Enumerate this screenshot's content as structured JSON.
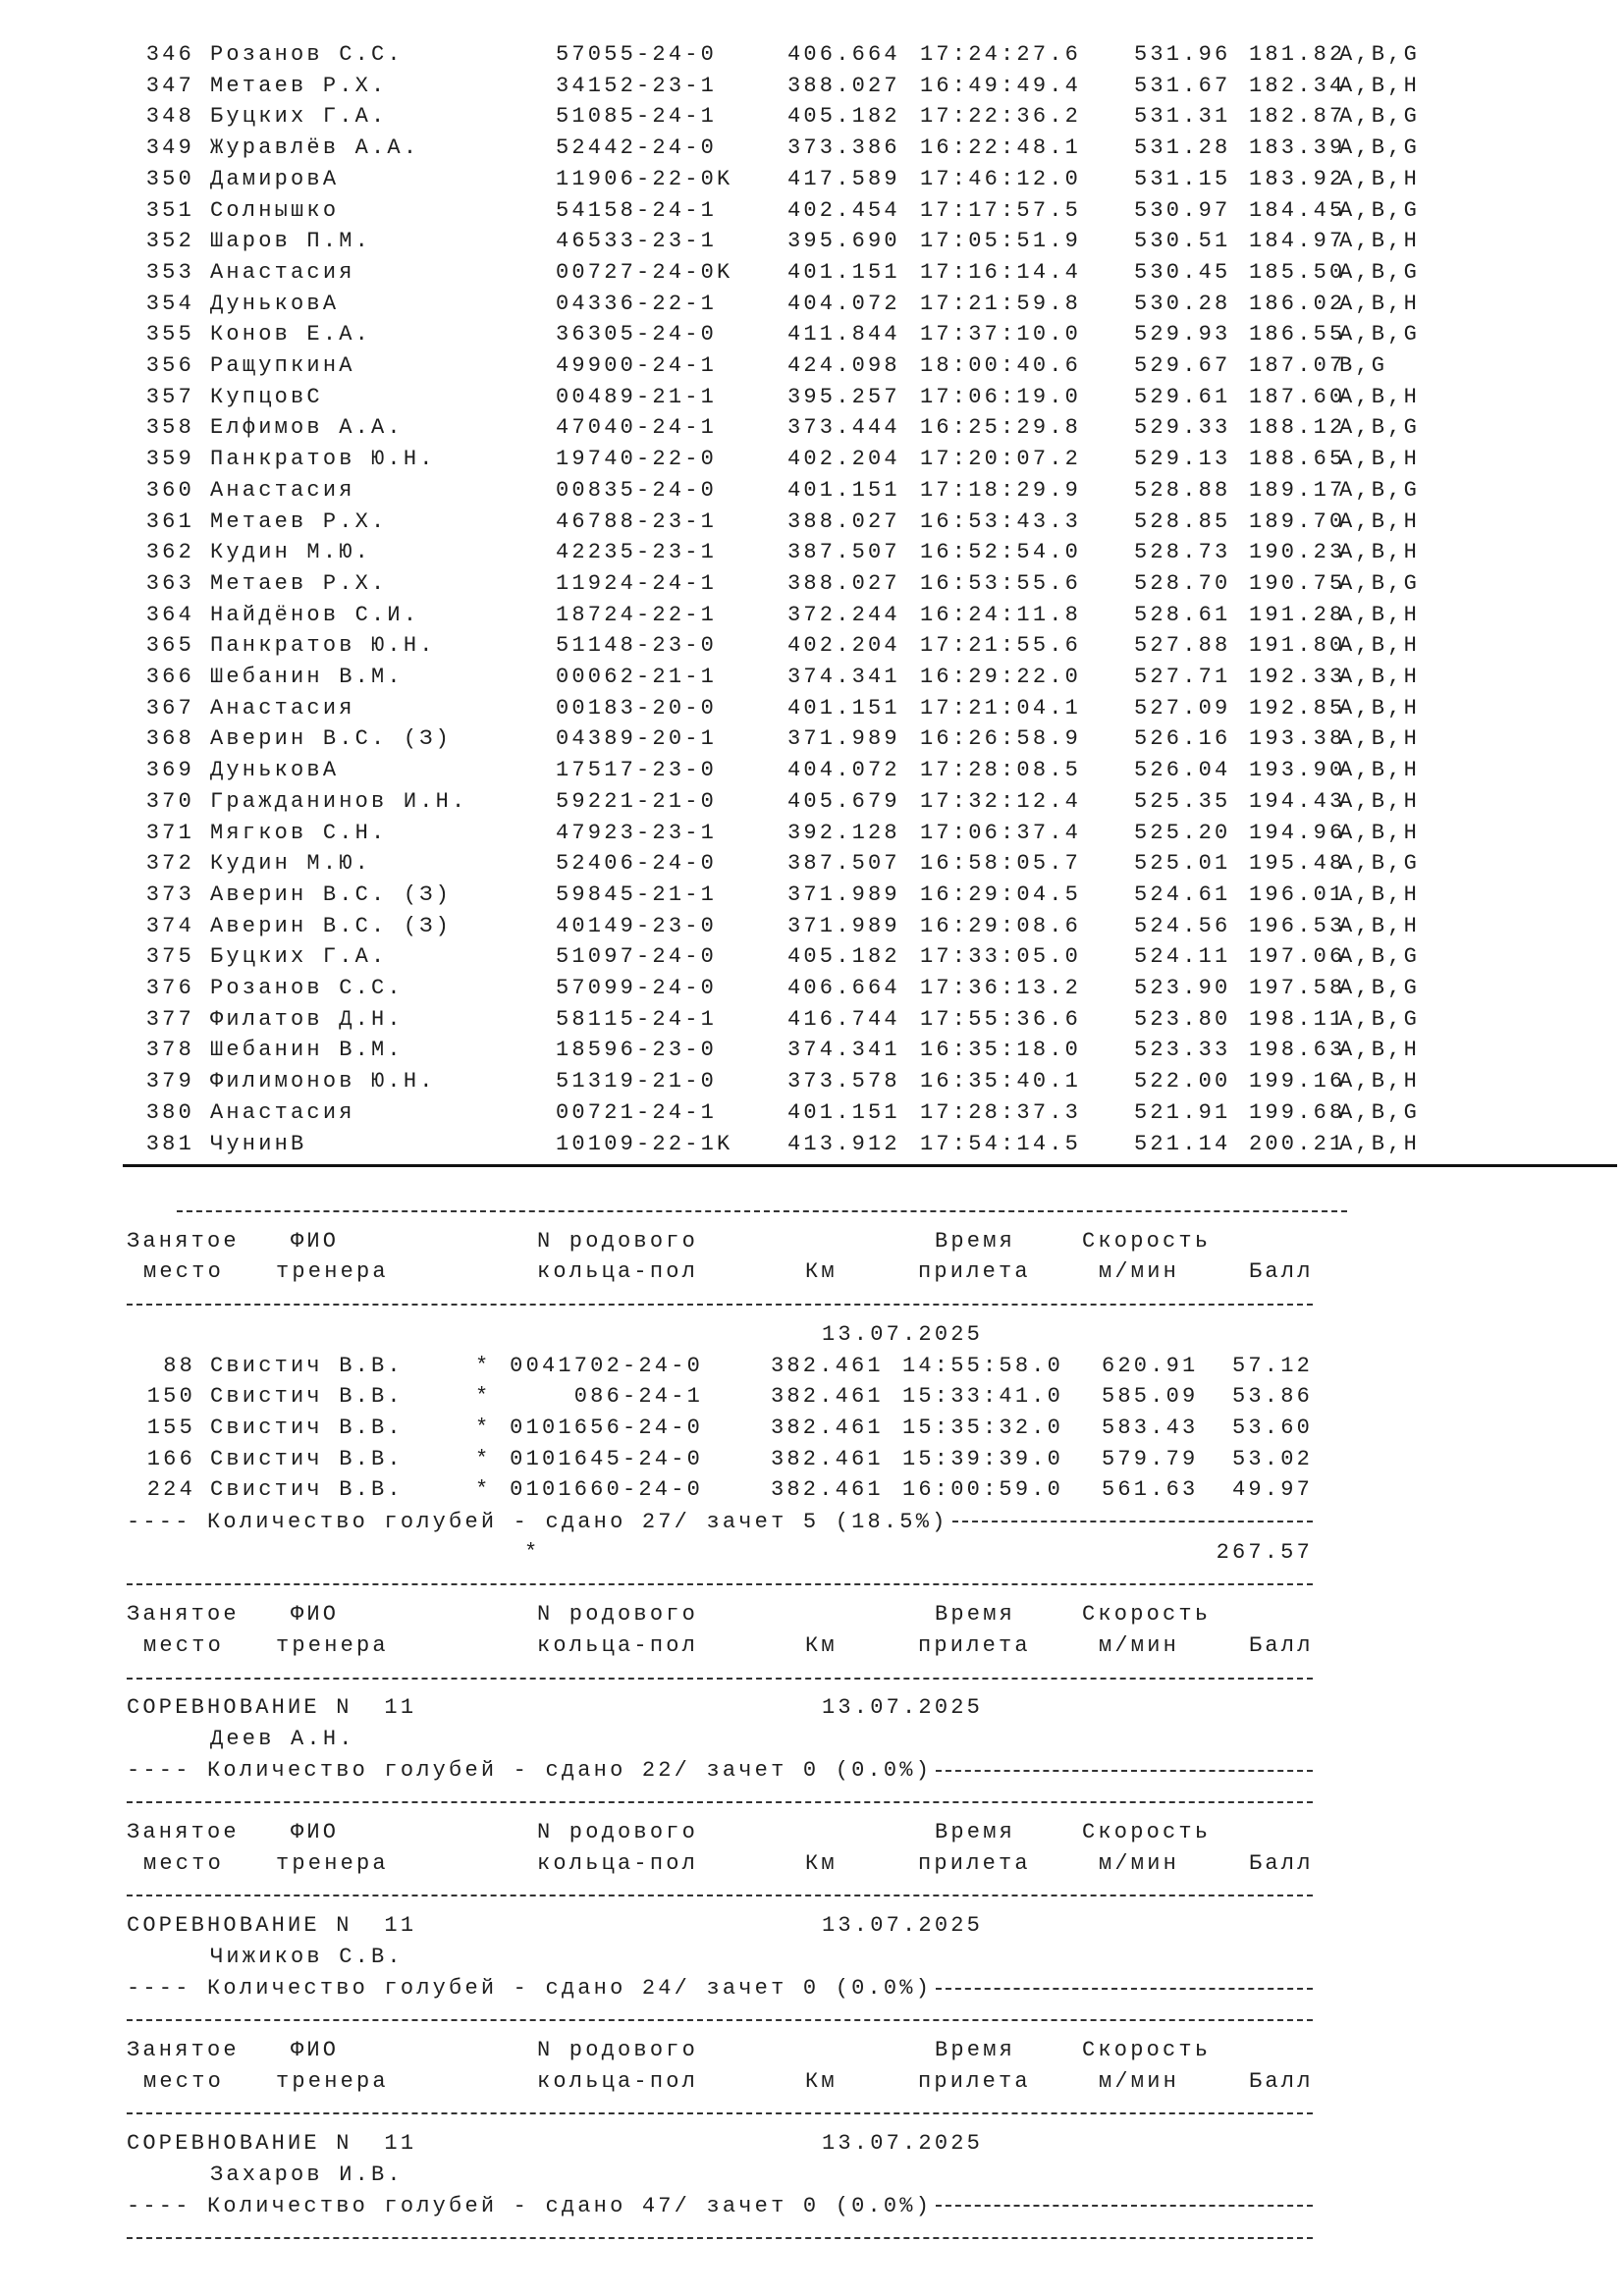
{
  "top_table": {
    "rows": [
      {
        "place": "346",
        "name": "Розанов С.С.",
        "ring": "57055-24-0",
        "km": "406.664",
        "time": "17:24:27.6",
        "speed": "531.96",
        "points": "181.82",
        "flags": "A,B,G"
      },
      {
        "place": "347",
        "name": "Метаев Р.Х.",
        "ring": "34152-23-1",
        "km": "388.027",
        "time": "16:49:49.4",
        "speed": "531.67",
        "points": "182.34",
        "flags": "A,B,H"
      },
      {
        "place": "348",
        "name": "Буцких Г.А.",
        "ring": "51085-24-1",
        "km": "405.182",
        "time": "17:22:36.2",
        "speed": "531.31",
        "points": "182.87",
        "flags": "A,B,G"
      },
      {
        "place": "349",
        "name": "Журавлёв А.А.",
        "ring": "52442-24-0",
        "km": "373.386",
        "time": "16:22:48.1",
        "speed": "531.28",
        "points": "183.39",
        "flags": "A,B,G"
      },
      {
        "place": "350",
        "name": "ДамировА",
        "ring": "11906-22-0K",
        "km": "417.589",
        "time": "17:46:12.0",
        "speed": "531.15",
        "points": "183.92",
        "flags": "A,B,H"
      },
      {
        "place": "351",
        "name": "Солнышко",
        "ring": "54158-24-1",
        "km": "402.454",
        "time": "17:17:57.5",
        "speed": "530.97",
        "points": "184.45",
        "flags": "A,B,G"
      },
      {
        "place": "352",
        "name": "Шаров П.М.",
        "ring": "46533-23-1",
        "km": "395.690",
        "time": "17:05:51.9",
        "speed": "530.51",
        "points": "184.97",
        "flags": "A,B,H"
      },
      {
        "place": "353",
        "name": "Анастасия",
        "ring": "00727-24-0K",
        "km": "401.151",
        "time": "17:16:14.4",
        "speed": "530.45",
        "points": "185.50",
        "flags": "A,B,G"
      },
      {
        "place": "354",
        "name": "ДуньковА",
        "ring": "04336-22-1",
        "km": "404.072",
        "time": "17:21:59.8",
        "speed": "530.28",
        "points": "186.02",
        "flags": "A,B,H"
      },
      {
        "place": "355",
        "name": "Конов Е.А.",
        "ring": "36305-24-0",
        "km": "411.844",
        "time": "17:37:10.0",
        "speed": "529.93",
        "points": "186.55",
        "flags": "A,B,G"
      },
      {
        "place": "356",
        "name": "РащупкинА",
        "ring": "49900-24-1",
        "km": "424.098",
        "time": "18:00:40.6",
        "speed": "529.67",
        "points": "187.07",
        "flags": "B,G"
      },
      {
        "place": "357",
        "name": "КупцовС",
        "ring": "00489-21-1",
        "km": "395.257",
        "time": "17:06:19.0",
        "speed": "529.61",
        "points": "187.60",
        "flags": "A,B,H"
      },
      {
        "place": "358",
        "name": "Елфимов А.А.",
        "ring": "47040-24-1",
        "km": "373.444",
        "time": "16:25:29.8",
        "speed": "529.33",
        "points": "188.12",
        "flags": "A,B,G"
      },
      {
        "place": "359",
        "name": "Панкратов Ю.Н.",
        "ring": "19740-22-0",
        "km": "402.204",
        "time": "17:20:07.2",
        "speed": "529.13",
        "points": "188.65",
        "flags": "A,B,H"
      },
      {
        "place": "360",
        "name": "Анастасия",
        "ring": "00835-24-0",
        "km": "401.151",
        "time": "17:18:29.9",
        "speed": "528.88",
        "points": "189.17",
        "flags": "A,B,G"
      },
      {
        "place": "361",
        "name": "Метаев Р.Х.",
        "ring": "46788-23-1",
        "km": "388.027",
        "time": "16:53:43.3",
        "speed": "528.85",
        "points": "189.70",
        "flags": "A,B,H"
      },
      {
        "place": "362",
        "name": "Кудин М.Ю.",
        "ring": "42235-23-1",
        "km": "387.507",
        "time": "16:52:54.0",
        "speed": "528.73",
        "points": "190.23",
        "flags": "A,B,H"
      },
      {
        "place": "363",
        "name": "Метаев Р.Х.",
        "ring": "11924-24-1",
        "km": "388.027",
        "time": "16:53:55.6",
        "speed": "528.70",
        "points": "190.75",
        "flags": "A,B,G"
      },
      {
        "place": "364",
        "name": "Найдёнов С.И.",
        "ring": "18724-22-1",
        "km": "372.244",
        "time": "16:24:11.8",
        "speed": "528.61",
        "points": "191.28",
        "flags": "A,B,H"
      },
      {
        "place": "365",
        "name": "Панкратов Ю.Н.",
        "ring": "51148-23-0",
        "km": "402.204",
        "time": "17:21:55.6",
        "speed": "527.88",
        "points": "191.80",
        "flags": "A,B,H"
      },
      {
        "place": "366",
        "name": "Шебанин В.М.",
        "ring": "00062-21-1",
        "km": "374.341",
        "time": "16:29:22.0",
        "speed": "527.71",
        "points": "192.33",
        "flags": "A,B,H"
      },
      {
        "place": "367",
        "name": "Анастасия",
        "ring": "00183-20-0",
        "km": "401.151",
        "time": "17:21:04.1",
        "speed": "527.09",
        "points": "192.85",
        "flags": "A,B,H"
      },
      {
        "place": "368",
        "name": "Аверин В.С. (З)",
        "ring": "04389-20-1",
        "km": "371.989",
        "time": "16:26:58.9",
        "speed": "526.16",
        "points": "193.38",
        "flags": "A,B,H"
      },
      {
        "place": "369",
        "name": "ДуньковА",
        "ring": "17517-23-0",
        "km": "404.072",
        "time": "17:28:08.5",
        "speed": "526.04",
        "points": "193.90",
        "flags": "A,B,H"
      },
      {
        "place": "370",
        "name": "Гражданинов И.Н.",
        "ring": "59221-21-0",
        "km": "405.679",
        "time": "17:32:12.4",
        "speed": "525.35",
        "points": "194.43",
        "flags": "A,B,H"
      },
      {
        "place": "371",
        "name": "Мягков С.Н.",
        "ring": "47923-23-1",
        "km": "392.128",
        "time": "17:06:37.4",
        "speed": "525.20",
        "points": "194.96",
        "flags": "A,B,H"
      },
      {
        "place": "372",
        "name": "Кудин М.Ю.",
        "ring": "52406-24-0",
        "km": "387.507",
        "time": "16:58:05.7",
        "speed": "525.01",
        "points": "195.48",
        "flags": "A,B,G"
      },
      {
        "place": "373",
        "name": "Аверин В.С. (З)",
        "ring": "59845-21-1",
        "km": "371.989",
        "time": "16:29:04.5",
        "speed": "524.61",
        "points": "196.01",
        "flags": "A,B,H"
      },
      {
        "place": "374",
        "name": "Аверин В.С. (З)",
        "ring": "40149-23-0",
        "km": "371.989",
        "time": "16:29:08.6",
        "speed": "524.56",
        "points": "196.53",
        "flags": "A,B,H"
      },
      {
        "place": "375",
        "name": "Буцких Г.А.",
        "ring": "51097-24-0",
        "km": "405.182",
        "time": "17:33:05.0",
        "speed": "524.11",
        "points": "197.06",
        "flags": "A,B,G"
      },
      {
        "place": "376",
        "name": "Розанов С.С.",
        "ring": "57099-24-0",
        "km": "406.664",
        "time": "17:36:13.2",
        "speed": "523.90",
        "points": "197.58",
        "flags": "A,B,G"
      },
      {
        "place": "377",
        "name": "Филатов Д.Н.",
        "ring": "58115-24-1",
        "km": "416.744",
        "time": "17:55:36.6",
        "speed": "523.80",
        "points": "198.11",
        "flags": "A,B,G"
      },
      {
        "place": "378",
        "name": "Шебанин В.М.",
        "ring": "18596-23-0",
        "km": "374.341",
        "time": "16:35:18.0",
        "speed": "523.33",
        "points": "198.63",
        "flags": "A,B,H"
      },
      {
        "place": "379",
        "name": "Филимонов Ю.Н.",
        "ring": "51319-21-0",
        "km": "373.578",
        "time": "16:35:40.1",
        "speed": "522.00",
        "points": "199.16",
        "flags": "A,B,H"
      },
      {
        "place": "380",
        "name": "Анастасия",
        "ring": "00721-24-1",
        "km": "401.151",
        "time": "17:28:37.3",
        "speed": "521.91",
        "points": "199.68",
        "flags": "A,B,G"
      },
      {
        "place": "381",
        "name": "ЧунинВ",
        "ring": "10109-22-1K",
        "km": "413.912",
        "time": "17:54:14.5",
        "speed": "521.14",
        "points": "200.21",
        "flags": "A,B,H"
      }
    ]
  },
  "header": {
    "place_1": "Занятое",
    "place_2": "место",
    "name_1": "ФИО",
    "name_2": "тренера",
    "ring_1": "N родового",
    "ring_2": "кольца-пол",
    "km": "Км",
    "time_1": "Время",
    "time_2": "прилета",
    "speed_1": "Скорость",
    "speed_2": "м/мин",
    "points": "Балл"
  },
  "block1": {
    "date": "13.07.2025",
    "rows": [
      {
        "place": "88",
        "name": "Свистич В.В.",
        "mark": "*",
        "ring": "0041702-24-0",
        "km": "382.461",
        "time": "14:55:58.0",
        "speed": "620.91",
        "points": "57.12"
      },
      {
        "place": "150",
        "name": "Свистич В.В.",
        "mark": "*",
        "ring": "086-24-1",
        "km": "382.461",
        "time": "15:33:41.0",
        "speed": "585.09",
        "points": "53.86"
      },
      {
        "place": "155",
        "name": "Свистич В.В.",
        "mark": "*",
        "ring": "0101656-24-0",
        "km": "382.461",
        "time": "15:35:32.0",
        "speed": "583.43",
        "points": "53.60"
      },
      {
        "place": "166",
        "name": "Свистич В.В.",
        "mark": "*",
        "ring": "0101645-24-0",
        "km": "382.461",
        "time": "15:39:39.0",
        "speed": "579.79",
        "points": "53.02"
      },
      {
        "place": "224",
        "name": "Свистич В.В.",
        "mark": "*",
        "ring": "0101660-24-0",
        "km": "382.461",
        "time": "16:00:59.0",
        "speed": "561.63",
        "points": "49.97"
      }
    ],
    "summary": "---- Количество голубей - сдано 27/ зачет 5 (18.5%)",
    "total_mark": "*",
    "total": "267.57"
  },
  "competitions": [
    {
      "title": "СОРЕВНОВАНИЕ N  11",
      "date": "13.07.2025",
      "trainer": "Деев А.Н.",
      "summary": "---- Количество голубей - сдано 22/ зачет 0 (0.0%)"
    },
    {
      "title": "СОРЕВНОВАНИЕ N  11",
      "date": "13.07.2025",
      "trainer": "Чижиков С.В.",
      "summary": "---- Количество голубей - сдано 24/ зачет 0 (0.0%)"
    },
    {
      "title": "СОРЕВНОВАНИЕ N  11",
      "date": "13.07.2025",
      "trainer": "Захаров И.В.",
      "summary": "---- Количество голубей - сдано 47/ зачет 0 (0.0%)"
    }
  ]
}
